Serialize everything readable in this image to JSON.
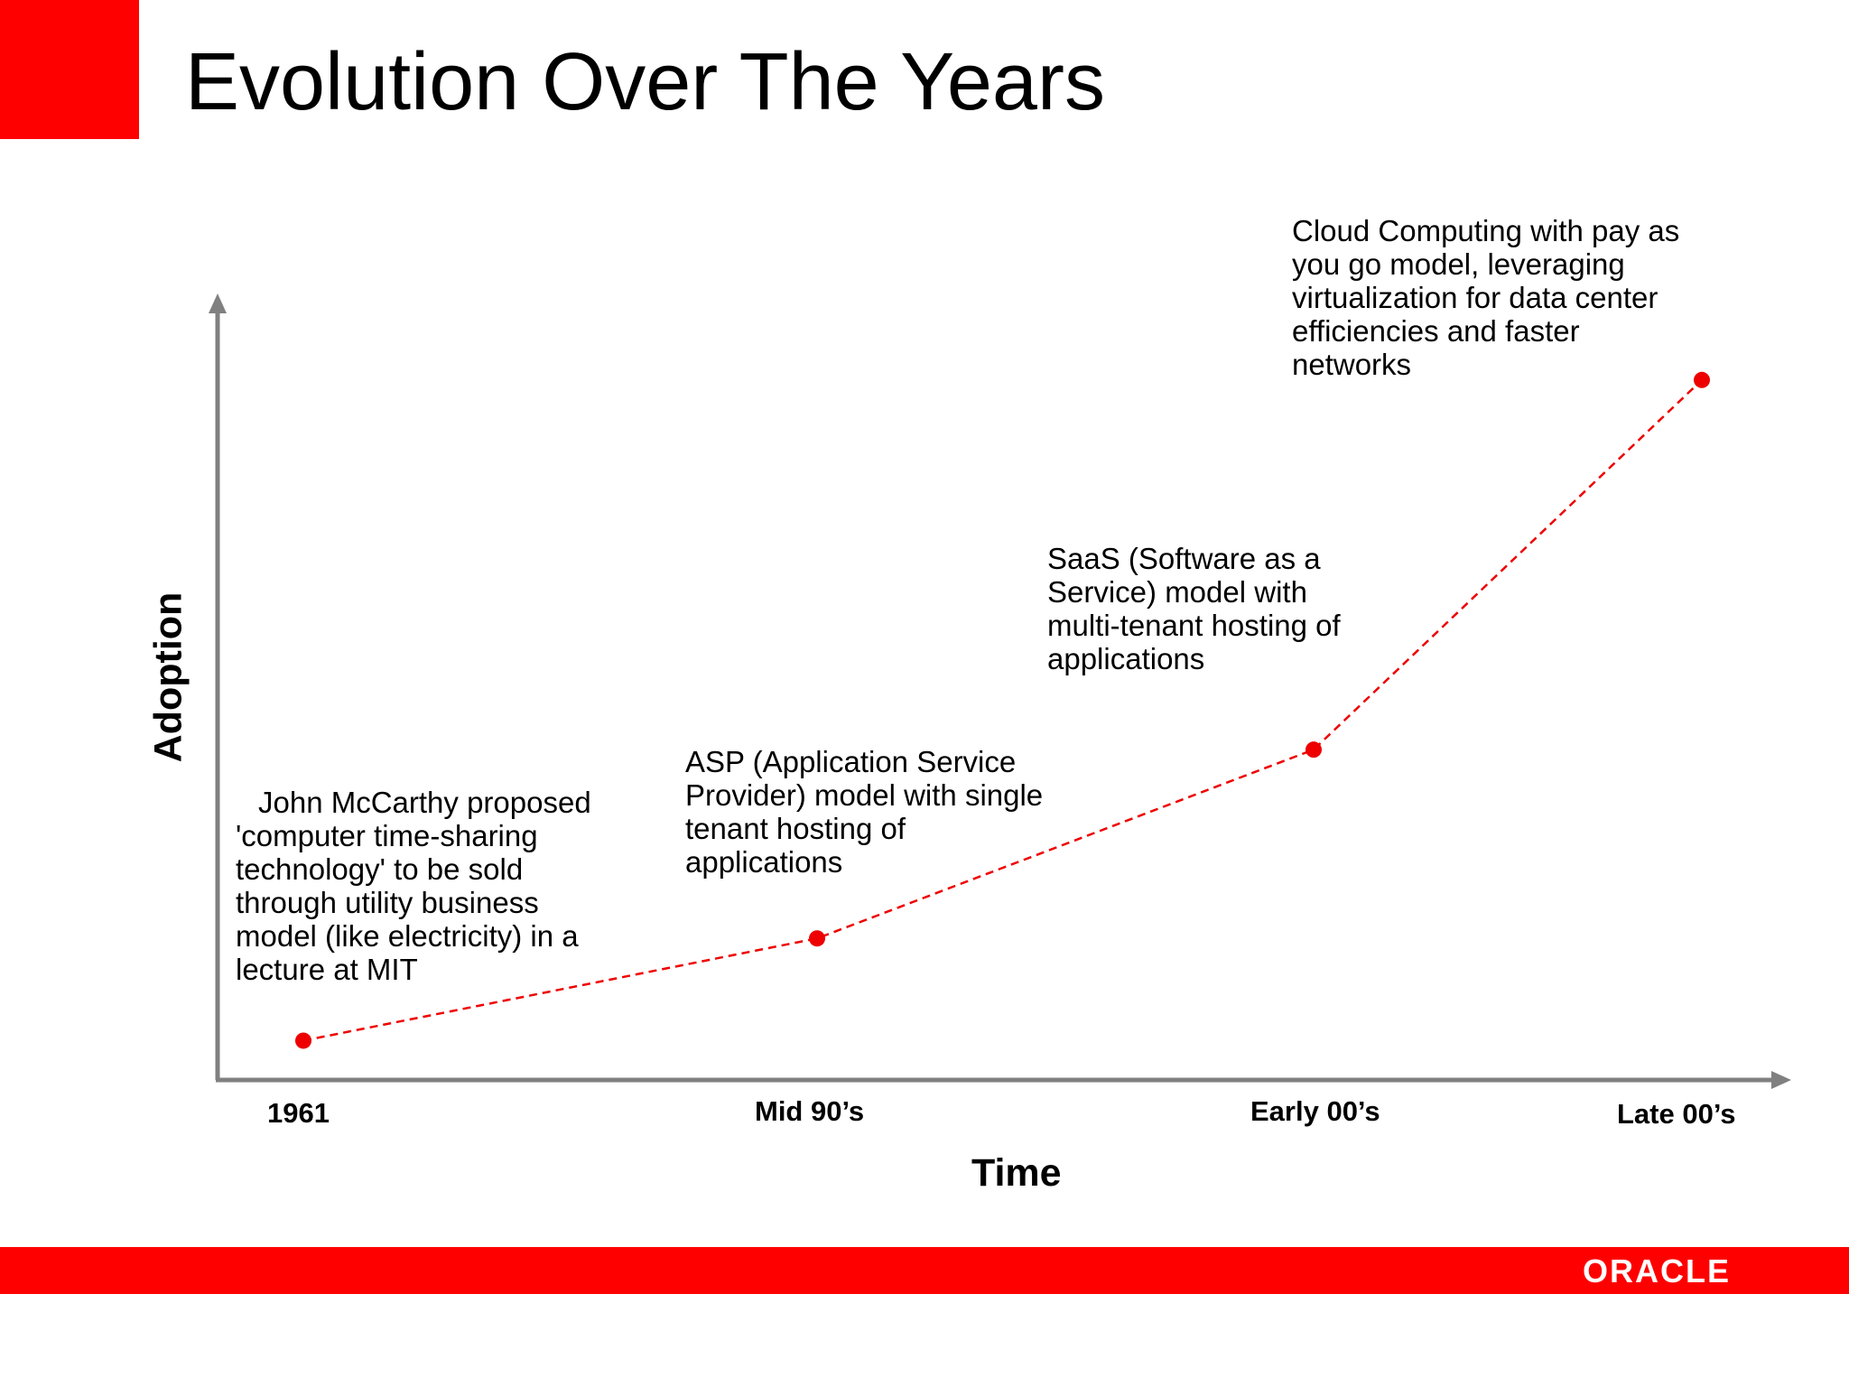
{
  "slide": {
    "title": "Evolution Over The Years",
    "logo_text": "ORACLE"
  },
  "colors": {
    "brand_red": "#ff0000",
    "axis_gray": "#808080",
    "series_red": "#ee0000"
  },
  "chart_data": {
    "type": "line",
    "xlabel": "Time",
    "ylabel": "Adoption",
    "categories": [
      "1961",
      "Mid 90’s",
      "Early 00’s",
      "Late 00’s"
    ],
    "series": [
      {
        "values": [
          5,
          18,
          42,
          89
        ],
        "style": "dashed",
        "markers": "dot"
      }
    ],
    "ylim": [
      0,
      100
    ],
    "grid": false,
    "legend": "none",
    "annotations": [
      "John McCarthy proposed 'computer time-sharing technology' to be sold through utility business model (like electricity) in a lecture at MIT",
      "ASP (Application Service Provider) model with single tenant hosting of applications",
      "SaaS (Software as a Service) model with multi-tenant hosting of applications",
      "Cloud Computing with pay as you go model, leveraging virtualization for data center efficiencies and faster networks"
    ]
  }
}
